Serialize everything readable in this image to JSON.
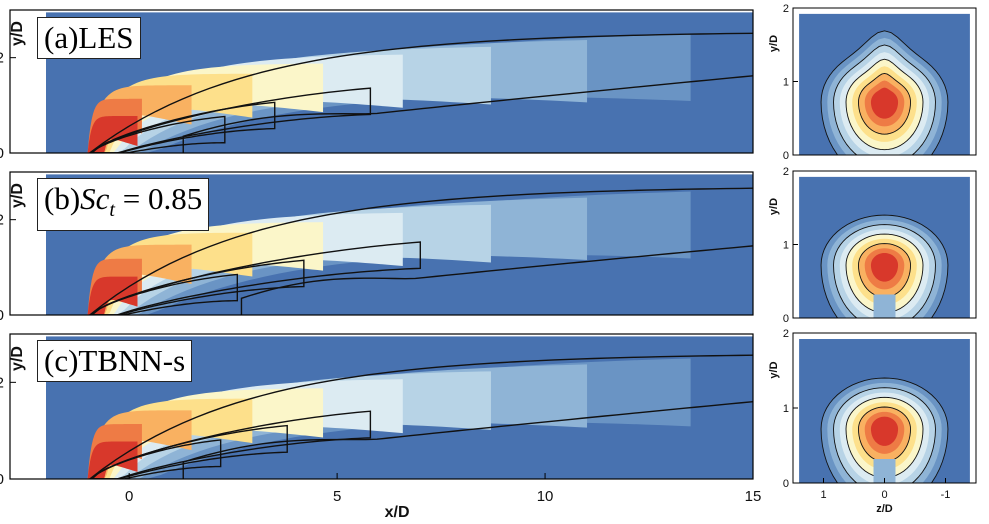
{
  "chart_data": [
    {
      "type": "contour",
      "panel_label": "(a)LES",
      "view": "side",
      "xlabel": "",
      "ylabel": "y/D",
      "xlim": [
        -2,
        15
      ],
      "ylim": [
        0,
        3
      ],
      "yticks": [
        0,
        2
      ],
      "xticks": [],
      "plume": {
        "len": 14.5,
        "h": 2.6,
        "core_len": 2.2,
        "bend": 0.45
      },
      "contours": [
        {
          "level": "inner",
          "end_x": 2.3,
          "top_y": 0.9
        },
        {
          "level": "mid",
          "end_x": 3.5,
          "top_y": 1.25
        },
        {
          "level": "outer",
          "end_x": 5.8,
          "top_y": 1.6
        },
        {
          "level": "upper-boundary",
          "end_x": 15,
          "top_y": 2.55
        },
        {
          "level": "lower-boundary",
          "end_x": 15,
          "top_y": 1.62
        }
      ]
    },
    {
      "type": "contour",
      "panel_label_parts": [
        "(b)",
        "Sc",
        "t",
        " = 0.85"
      ],
      "view": "side",
      "xlabel": "",
      "ylabel": "y/D",
      "xlim": [
        -2,
        15
      ],
      "ylim": [
        0,
        3
      ],
      "yticks": [
        0,
        2
      ],
      "xticks": [],
      "plume": {
        "len": 14.5,
        "h": 2.7,
        "core_len": 2.4,
        "bend": 0.4
      },
      "contours": [
        {
          "level": "inner",
          "end_x": 2.6,
          "top_y": 1.0
        },
        {
          "level": "mid",
          "end_x": 4.2,
          "top_y": 1.35
        },
        {
          "level": "outer",
          "end_x": 7.0,
          "top_y": 1.8
        },
        {
          "level": "upper-boundary",
          "end_x": 15,
          "top_y": 2.7
        },
        {
          "level": "lower-boundary",
          "end_x": 15,
          "top_y": 1.45
        }
      ]
    },
    {
      "type": "contour",
      "panel_label": "(c)TBNN-s",
      "view": "side",
      "xlabel": "x/D",
      "ylabel": "y/D",
      "xlim": [
        -2,
        15
      ],
      "ylim": [
        0,
        3
      ],
      "yticks": [
        0,
        2
      ],
      "xticks": [
        0,
        5,
        10,
        15
      ],
      "plume": {
        "len": 14.5,
        "h": 2.6,
        "core_len": 2.3,
        "bend": 0.45
      },
      "contours": [
        {
          "level": "inner",
          "end_x": 2.2,
          "top_y": 0.95
        },
        {
          "level": "mid",
          "end_x": 3.8,
          "top_y": 1.3
        },
        {
          "level": "outer",
          "end_x": 5.8,
          "top_y": 1.65
        },
        {
          "level": "upper-boundary",
          "end_x": 15,
          "top_y": 2.6
        },
        {
          "level": "lower-boundary",
          "end_x": 15,
          "top_y": 1.6
        }
      ]
    },
    {
      "type": "contour",
      "view": "cross-section",
      "ylabel": "y/D",
      "xlabel": "",
      "zlim": [
        1.5,
        -1.5
      ],
      "ylim": [
        0,
        2
      ],
      "yticks": [
        0,
        1,
        2
      ],
      "ztick_labels": [],
      "center_y": 0.72,
      "lobe": "kidney"
    },
    {
      "type": "contour",
      "view": "cross-section",
      "ylabel": "y/D",
      "xlabel": "",
      "zlim": [
        1.5,
        -1.5
      ],
      "ylim": [
        0,
        2
      ],
      "yticks": [
        0,
        1,
        2
      ],
      "ztick_labels": [],
      "center_y": 0.72,
      "lobe": "round"
    },
    {
      "type": "contour",
      "view": "cross-section",
      "ylabel": "y/D",
      "xlabel": "z/D",
      "zlim": [
        1.5,
        -1.5
      ],
      "ylim": [
        0,
        2
      ],
      "yticks": [
        0,
        1,
        2
      ],
      "ztick_values": [
        1,
        0,
        -1
      ],
      "ztick_labels": [
        "1",
        "0",
        "-1"
      ],
      "center_y": 0.72,
      "lobe": "round"
    }
  ],
  "colors": {
    "background_field": "#4872b0",
    "levels": [
      "#4872b0",
      "#6a94c4",
      "#8fb4d6",
      "#b7d3e6",
      "#dcebf2",
      "#fbf6c9",
      "#fde08b",
      "#f9b161",
      "#ee7b45",
      "#d8382b"
    ],
    "contour_line": "#111111"
  }
}
